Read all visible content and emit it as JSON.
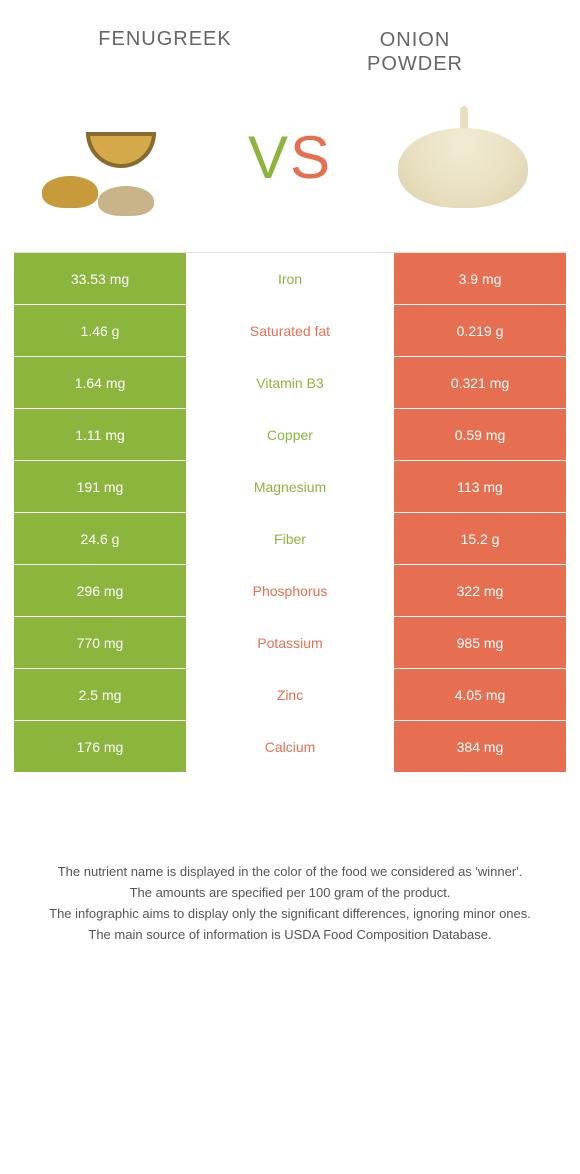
{
  "colors": {
    "green": "#8bb53c",
    "orange": "#e76f51",
    "title_text": "#666666",
    "note_text": "#555555",
    "row_border": "#ffffff",
    "table_top_border": "#e0e0e0",
    "background": "#ffffff"
  },
  "fonts": {
    "title_size": 20,
    "vs_size": 60,
    "cell_size": 14,
    "note_size": 13
  },
  "header": {
    "left_title": "Fenugreek",
    "right_title_line1": "Onion",
    "right_title_line2": "powder",
    "vs_v": "V",
    "vs_s": "S"
  },
  "table": {
    "left_column_color": "green",
    "right_column_color": "orange",
    "rows": [
      {
        "left": "33.53 mg",
        "nutrient": "Iron",
        "right": "3.9 mg",
        "winner": "green"
      },
      {
        "left": "1.46 g",
        "nutrient": "Saturated fat",
        "right": "0.219 g",
        "winner": "orange"
      },
      {
        "left": "1.64 mg",
        "nutrient": "Vitamin B3",
        "right": "0.321 mg",
        "winner": "green"
      },
      {
        "left": "1.11 mg",
        "nutrient": "Copper",
        "right": "0.59 mg",
        "winner": "green"
      },
      {
        "left": "191 mg",
        "nutrient": "Magnesium",
        "right": "113 mg",
        "winner": "green"
      },
      {
        "left": "24.6 g",
        "nutrient": "Fiber",
        "right": "15.2 g",
        "winner": "green"
      },
      {
        "left": "296 mg",
        "nutrient": "Phosphorus",
        "right": "322 mg",
        "winner": "orange"
      },
      {
        "left": "770 mg",
        "nutrient": "Potassium",
        "right": "985 mg",
        "winner": "orange"
      },
      {
        "left": "2.5 mg",
        "nutrient": "Zinc",
        "right": "4.05 mg",
        "winner": "orange"
      },
      {
        "left": "176 mg",
        "nutrient": "Calcium",
        "right": "384 mg",
        "winner": "orange"
      }
    ]
  },
  "notes": [
    "The nutrient name is displayed in the color of the food we considered as 'winner'.",
    "The amounts are specified per 100 gram of the product.",
    "The infographic aims to display only the significant differences, ignoring minor ones.",
    "The main source of information is USDA Food Composition Database."
  ]
}
